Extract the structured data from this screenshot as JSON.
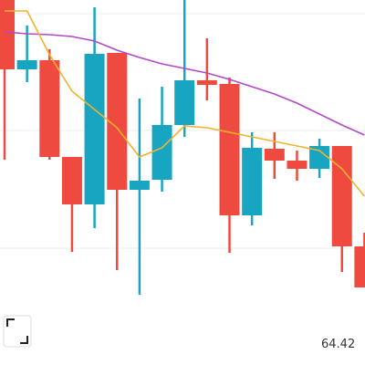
{
  "chart_data": {
    "type": "candlestick",
    "annotation": "64.42",
    "categories": [
      null,
      null,
      null,
      null,
      null,
      null,
      null,
      null,
      null,
      null,
      null,
      null,
      null,
      null,
      null,
      null,
      null
    ],
    "open": [
      100,
      81,
      83.5,
      57,
      44,
      85.5,
      48,
      50.75,
      65.75,
      78,
      77,
      41,
      59.25,
      56,
      53.75,
      60,
      32.5
    ],
    "high": [
      100,
      93,
      86.5,
      57,
      98,
      85.5,
      73,
      76.25,
      100,
      89.5,
      78.75,
      63.75,
      63.75,
      58.75,
      62,
      60,
      36.25
    ],
    "low": [
      56.25,
      77.5,
      56.25,
      31,
      37.5,
      26,
      19.25,
      47.5,
      62.5,
      72.5,
      30.75,
      38.25,
      51,
      50.5,
      51.25,
      25.5,
      21.25
    ],
    "close": [
      81,
      83.5,
      57,
      44,
      85.25,
      48,
      50.5,
      65.75,
      78,
      76.75,
      41,
      59.5,
      56,
      53.75,
      60,
      32.5,
      21.25
    ],
    "up_color": "#17a5c2",
    "down_color": "#ef4a3f",
    "lines": [
      {
        "color": "#b347c7",
        "values": [
          91.25,
          90.75,
          90.5,
          90,
          88.75,
          86.25,
          84.25,
          82.5,
          81.25,
          80,
          78.25,
          76.25,
          74.25,
          71.75,
          68.75,
          65.75,
          63
        ]
      },
      {
        "color": "#f2b22e",
        "values": [
          97,
          97,
          85,
          75,
          70,
          65,
          57,
          59.5,
          65.5,
          65,
          63.75,
          62.5,
          61.25,
          60,
          58.75,
          53.75,
          46.25
        ]
      }
    ],
    "ylim": [
      0,
      100
    ],
    "yticks": [
      32,
      64.25,
      96.25
    ],
    "grid": true
  }
}
